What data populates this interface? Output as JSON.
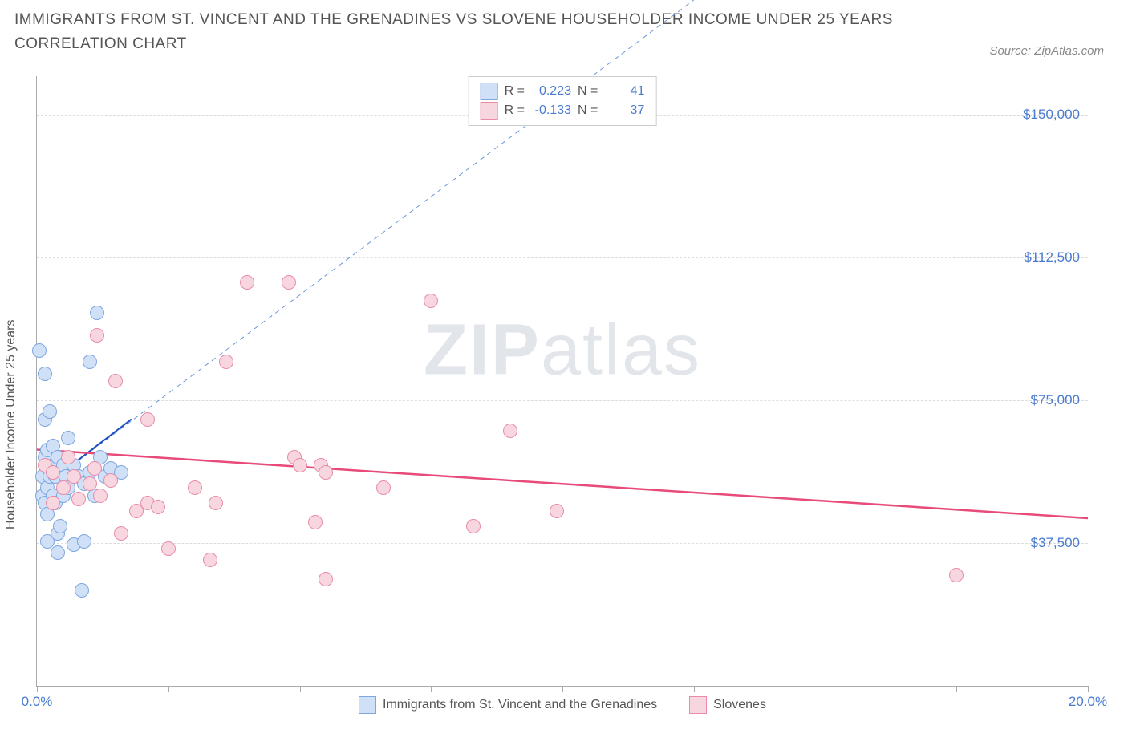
{
  "title": "IMMIGRANTS FROM ST. VINCENT AND THE GRENADINES VS SLOVENE HOUSEHOLDER INCOME UNDER 25 YEARS CORRELATION CHART",
  "source": "Source: ZipAtlas.com",
  "ylabel": "Householder Income Under 25 years",
  "watermark_left": "ZIP",
  "watermark_right": "atlas",
  "chart": {
    "type": "scatter",
    "xlim": [
      0,
      20
    ],
    "ylim": [
      0,
      160000
    ],
    "background_color": "#ffffff",
    "grid_color": "#dddddd",
    "axis_color": "#aaaaaa",
    "ytick_values": [
      37500,
      75000,
      112500,
      150000
    ],
    "ytick_labels": [
      "$37,500",
      "$75,000",
      "$112,500",
      "$150,000"
    ],
    "xtick_values": [
      0,
      2.5,
      5,
      7.5,
      10,
      12.5,
      15,
      17.5,
      20
    ],
    "xtick_labels": {
      "0": "0.0%",
      "20": "20.0%"
    },
    "marker_radius": 9,
    "marker_border_width": 1.5,
    "label_color": "#4a7bd0",
    "text_color": "#555555"
  },
  "series": [
    {
      "key": "svg_immigrants",
      "label": "Immigrants from St. Vincent and the Grenadines",
      "fill": "#cfe0f7",
      "stroke": "#7ea6e0",
      "r_value": "0.223",
      "n_value": "41",
      "fit_solid": {
        "x1": 0.1,
        "y1": 52000,
        "x2": 1.8,
        "y2": 70000,
        "color": "#1f4fbf",
        "width": 2
      },
      "fit_dashed": {
        "x1": 0.1,
        "y1": 52000,
        "x2": 12.5,
        "y2": 180000,
        "color": "#6b96db",
        "width": 1,
        "dash": "6,5"
      },
      "points": [
        [
          0.1,
          50000
        ],
        [
          0.1,
          55000
        ],
        [
          0.15,
          48000
        ],
        [
          0.15,
          60000
        ],
        [
          0.15,
          70000
        ],
        [
          0.15,
          82000
        ],
        [
          0.2,
          45000
        ],
        [
          0.2,
          52000
        ],
        [
          0.2,
          62000
        ],
        [
          0.2,
          38000
        ],
        [
          0.25,
          55000
        ],
        [
          0.25,
          72000
        ],
        [
          0.3,
          50000
        ],
        [
          0.3,
          58000
        ],
        [
          0.3,
          63000
        ],
        [
          0.35,
          48000
        ],
        [
          0.35,
          55000
        ],
        [
          0.4,
          35000
        ],
        [
          0.4,
          40000
        ],
        [
          0.4,
          60000
        ],
        [
          0.5,
          50000
        ],
        [
          0.5,
          58000
        ],
        [
          0.55,
          55000
        ],
        [
          0.6,
          52000
        ],
        [
          0.6,
          65000
        ],
        [
          0.7,
          58000
        ],
        [
          0.7,
          37000
        ],
        [
          0.8,
          55000
        ],
        [
          0.9,
          38000
        ],
        [
          0.9,
          53000
        ],
        [
          1.0,
          85000
        ],
        [
          1.0,
          56000
        ],
        [
          1.1,
          50000
        ],
        [
          1.15,
          98000
        ],
        [
          1.2,
          60000
        ],
        [
          1.3,
          55000
        ],
        [
          1.4,
          57000
        ],
        [
          0.05,
          88000
        ],
        [
          0.85,
          25000
        ],
        [
          0.45,
          42000
        ],
        [
          1.6,
          56000
        ]
      ]
    },
    {
      "key": "slovenes",
      "label": "Slovenes",
      "fill": "#f7d6e0",
      "stroke": "#e88ca8",
      "r_value": "-0.133",
      "n_value": "37",
      "fit_solid": {
        "x1": 0,
        "y1": 62000,
        "x2": 20,
        "y2": 44000,
        "color": "#e84a7a",
        "width": 2.5
      },
      "points": [
        [
          0.15,
          58000
        ],
        [
          0.3,
          56000
        ],
        [
          0.3,
          48000
        ],
        [
          0.5,
          52000
        ],
        [
          0.6,
          60000
        ],
        [
          0.7,
          55000
        ],
        [
          0.8,
          49000
        ],
        [
          1.0,
          53000
        ],
        [
          1.1,
          57000
        ],
        [
          1.2,
          50000
        ],
        [
          1.15,
          92000
        ],
        [
          1.4,
          54000
        ],
        [
          1.5,
          80000
        ],
        [
          1.6,
          40000
        ],
        [
          1.9,
          46000
        ],
        [
          2.1,
          70000
        ],
        [
          2.1,
          48000
        ],
        [
          2.3,
          47000
        ],
        [
          2.5,
          36000
        ],
        [
          3.0,
          52000
        ],
        [
          3.3,
          33000
        ],
        [
          3.4,
          48000
        ],
        [
          3.6,
          85000
        ],
        [
          4.0,
          106000
        ],
        [
          4.8,
          106000
        ],
        [
          4.9,
          60000
        ],
        [
          5.0,
          58000
        ],
        [
          5.3,
          43000
        ],
        [
          5.4,
          58000
        ],
        [
          5.5,
          56000
        ],
        [
          5.5,
          28000
        ],
        [
          6.6,
          52000
        ],
        [
          7.5,
          101000
        ],
        [
          8.3,
          42000
        ],
        [
          9.0,
          67000
        ],
        [
          9.9,
          46000
        ],
        [
          17.5,
          29000
        ]
      ]
    }
  ],
  "stats_labels": {
    "r": "R =",
    "n": "N ="
  }
}
